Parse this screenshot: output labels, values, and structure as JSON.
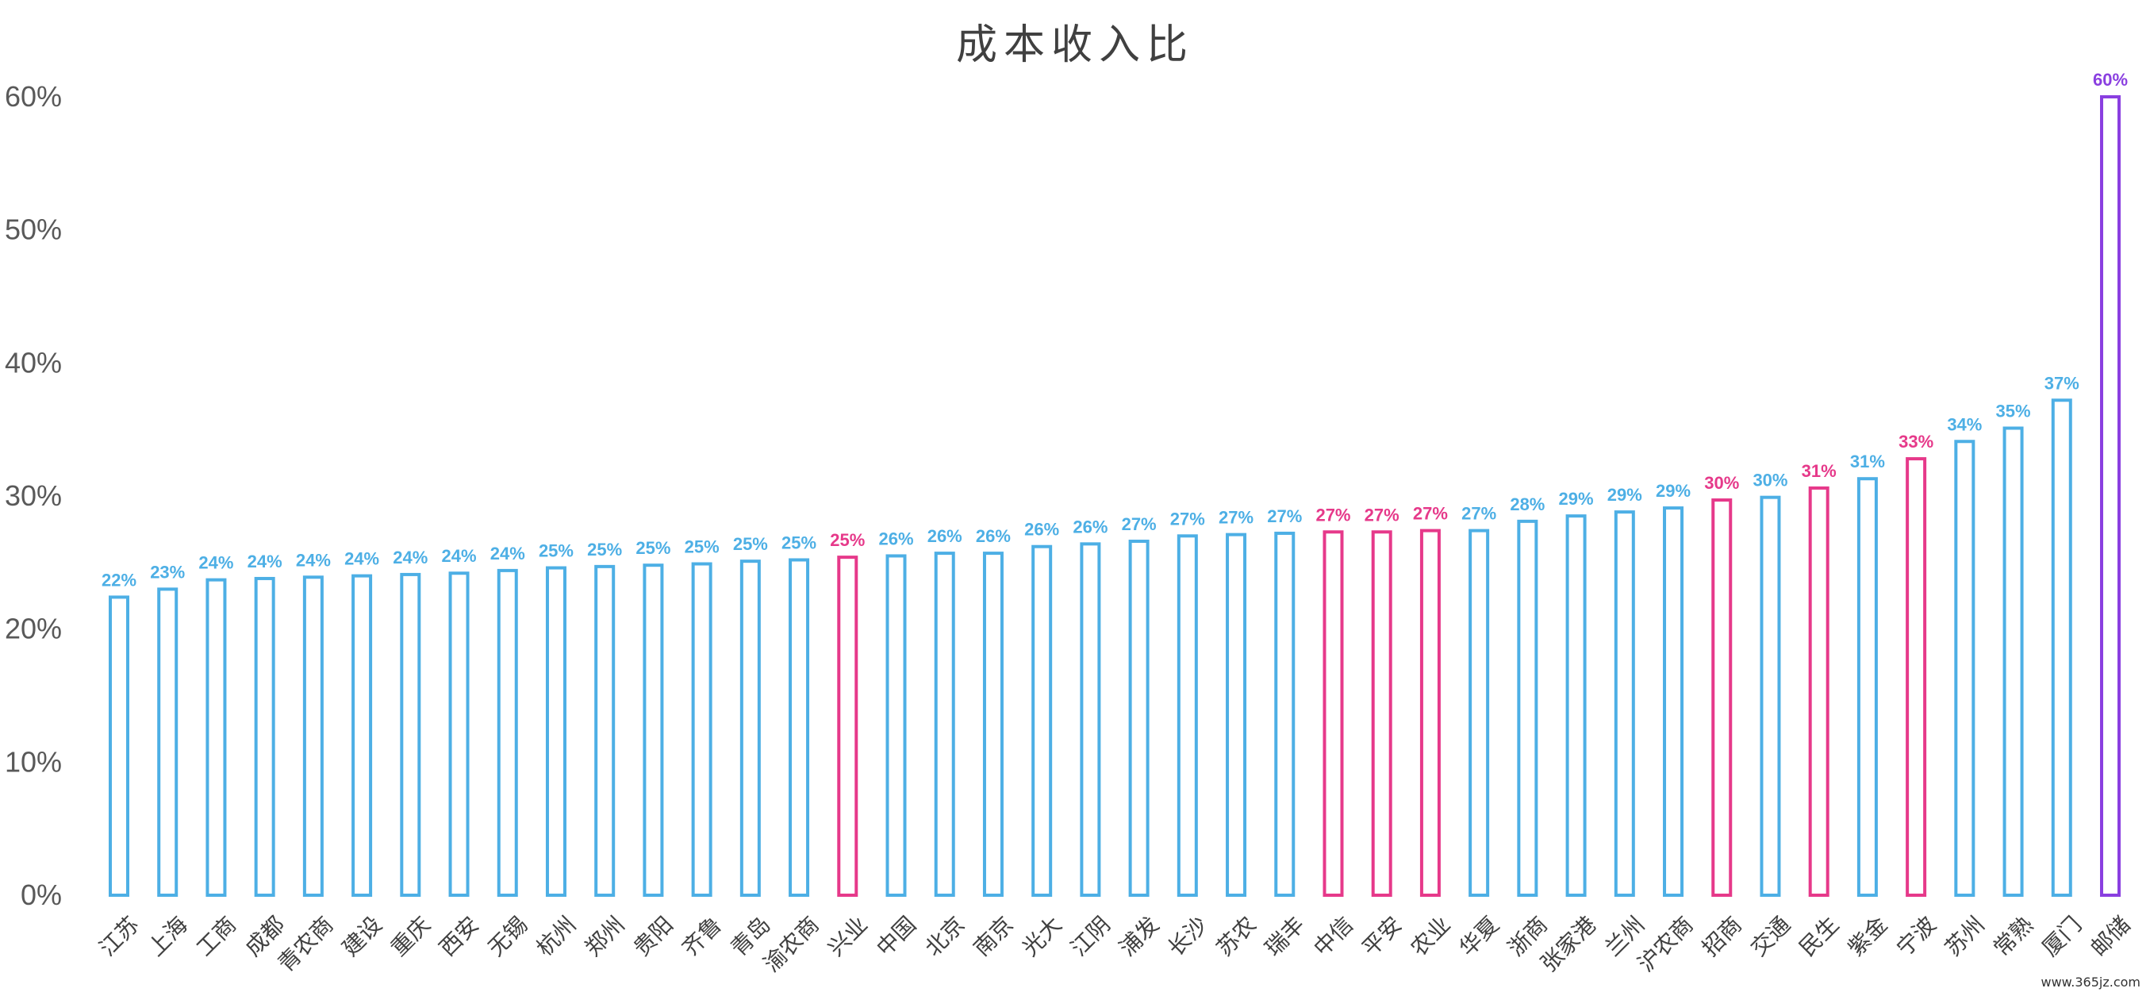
{
  "chart_data": {
    "type": "bar",
    "title": "成本收入比",
    "xlabel": "",
    "ylabel": "",
    "ylim": [
      0,
      60
    ],
    "yticks": [
      "0%",
      "10%",
      "20%",
      "30%",
      "40%",
      "50%",
      "60%"
    ],
    "grid": false,
    "categories": [
      "江苏",
      "上海",
      "工商",
      "成都",
      "青农商",
      "建设",
      "重庆",
      "西安",
      "无锡",
      "杭州",
      "郑州",
      "贵阳",
      "齐鲁",
      "青岛",
      "渝农商",
      "兴业",
      "中国",
      "北京",
      "南京",
      "光大",
      "江阴",
      "浦发",
      "长沙",
      "苏农",
      "瑞丰",
      "中信",
      "平安",
      "农业",
      "华夏",
      "浙商",
      "张家港",
      "兰州",
      "沪农商",
      "招商",
      "交通",
      "民生",
      "紫金",
      "宁波",
      "苏州",
      "常熟",
      "厦门",
      "邮储"
    ],
    "values": [
      22.4,
      23.0,
      23.7,
      23.8,
      23.9,
      24.0,
      24.1,
      24.2,
      24.4,
      24.6,
      24.7,
      24.8,
      24.9,
      25.1,
      25.2,
      25.4,
      25.5,
      25.7,
      25.7,
      26.2,
      26.4,
      26.6,
      27.0,
      27.1,
      27.2,
      27.3,
      27.3,
      27.4,
      27.4,
      28.1,
      28.5,
      28.8,
      29.1,
      29.7,
      29.9,
      30.6,
      31.3,
      32.8,
      34.1,
      35.1,
      37.2,
      60.0
    ],
    "labels": [
      "22%",
      "23%",
      "24%",
      "24%",
      "24%",
      "24%",
      "24%",
      "24%",
      "24%",
      "25%",
      "25%",
      "25%",
      "25%",
      "25%",
      "25%",
      "25%",
      "26%",
      "26%",
      "26%",
      "26%",
      "26%",
      "27%",
      "27%",
      "27%",
      "27%",
      "27%",
      "27%",
      "27%",
      "27%",
      "28%",
      "29%",
      "29%",
      "29%",
      "30%",
      "30%",
      "31%",
      "31%",
      "33%",
      "34%",
      "35%",
      "37%",
      "60%"
    ],
    "groups": [
      "regional",
      "regional",
      "state",
      "regional",
      "regional",
      "state",
      "regional",
      "regional",
      "regional",
      "regional",
      "regional",
      "regional",
      "regional",
      "regional",
      "regional",
      "joint",
      "state",
      "regional",
      "regional",
      "regional",
      "regional",
      "regional",
      "regional",
      "regional",
      "regional",
      "joint",
      "joint",
      "joint",
      "regional",
      "regional",
      "regional",
      "regional",
      "regional",
      "joint",
      "regional",
      "joint",
      "regional",
      "joint",
      "regional",
      "regional",
      "regional",
      "postal"
    ],
    "colors": {
      "regional": "#4DAFE5",
      "state": "#4DAFE5",
      "joint": "#E6398A",
      "postal": "#8A3FE0"
    }
  },
  "watermark": "www.365jz.com"
}
